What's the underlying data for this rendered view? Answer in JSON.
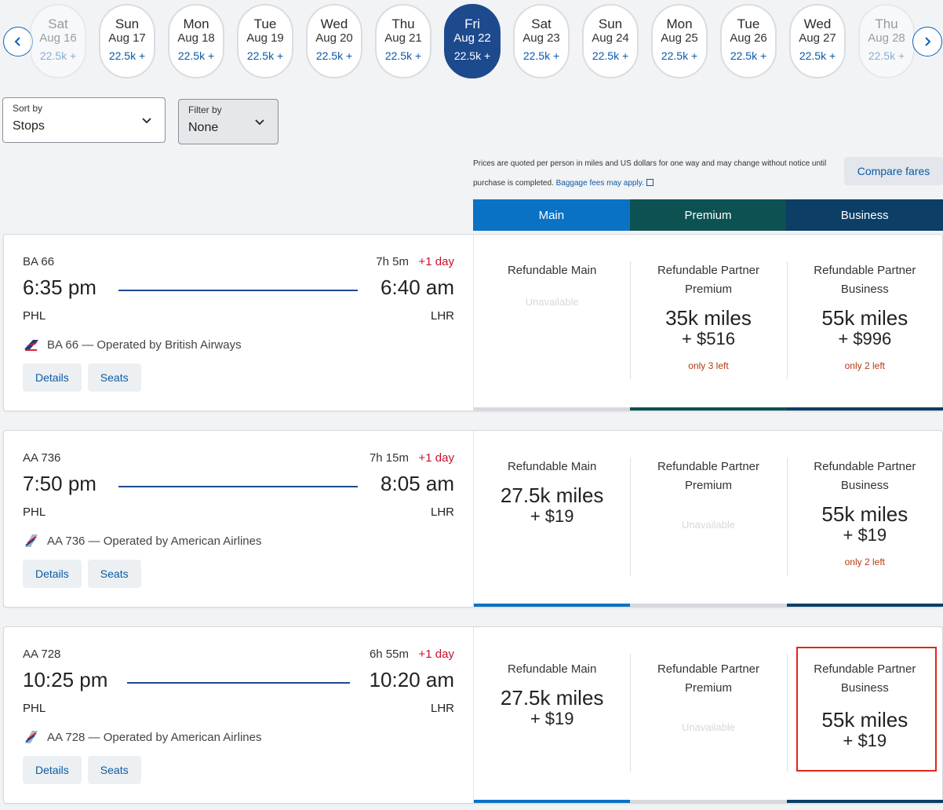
{
  "dates": [
    {
      "dow": "Sat",
      "date": "Aug 16",
      "price": "22.5k +"
    },
    {
      "dow": "Sun",
      "date": "Aug 17",
      "price": "22.5k +"
    },
    {
      "dow": "Mon",
      "date": "Aug 18",
      "price": "22.5k +"
    },
    {
      "dow": "Tue",
      "date": "Aug 19",
      "price": "22.5k +"
    },
    {
      "dow": "Wed",
      "date": "Aug 20",
      "price": "22.5k +"
    },
    {
      "dow": "Thu",
      "date": "Aug 21",
      "price": "22.5k +"
    },
    {
      "dow": "Fri",
      "date": "Aug 22",
      "price": "22.5k +"
    },
    {
      "dow": "Sat",
      "date": "Aug 23",
      "price": "22.5k +"
    },
    {
      "dow": "Sun",
      "date": "Aug 24",
      "price": "22.5k +"
    },
    {
      "dow": "Mon",
      "date": "Aug 25",
      "price": "22.5k +"
    },
    {
      "dow": "Tue",
      "date": "Aug 26",
      "price": "22.5k +"
    },
    {
      "dow": "Wed",
      "date": "Aug 27",
      "price": "22.5k +"
    },
    {
      "dow": "Thu",
      "date": "Aug 28",
      "price": "22.5k +"
    }
  ],
  "sort": {
    "label": "Sort by",
    "value": "Stops"
  },
  "filter": {
    "label": "Filter by",
    "value": "None"
  },
  "notice": {
    "text": "Prices are quoted per person in miles and US dollars for one way and may change without notice until purchase is completed.",
    "link": "Baggage fees may apply."
  },
  "compare_label": "Compare fares",
  "cabins": [
    "Main",
    "Premium",
    "Business"
  ],
  "colors": {
    "main": "#0a72c4",
    "premium": "#0d5252",
    "business": "#0c3e66",
    "selected_date": "#1d4a8d",
    "limited_seats": "#b33a12",
    "plus_day": "#c8102e"
  },
  "flights": [
    {
      "number": "BA 66",
      "duration": "7h 5m",
      "plus_day": "+1 day",
      "depart_time": "6:35 pm",
      "arrive_time": "6:40 am",
      "depart_airport": "PHL",
      "arrive_airport": "LHR",
      "operated": "BA 66 — Operated by British Airways",
      "details_label": "Details",
      "seats_label": "Seats",
      "fares": [
        {
          "name": "Refundable Main",
          "unavailable": "Unavailable"
        },
        {
          "name": "Refundable Partner Premium",
          "miles": "35k miles",
          "cash": "+ $516",
          "seats": "only 3 left"
        },
        {
          "name": "Refundable Partner Business",
          "miles": "55k miles",
          "cash": "+ $996",
          "seats": "only 2 left"
        }
      ]
    },
    {
      "number": "AA 736",
      "duration": "7h 15m",
      "plus_day": "+1 day",
      "depart_time": "7:50 pm",
      "arrive_time": "8:05 am",
      "depart_airport": "PHL",
      "arrive_airport": "LHR",
      "operated": "AA 736 — Operated by American Airlines",
      "details_label": "Details",
      "seats_label": "Seats",
      "fares": [
        {
          "name": "Refundable Main",
          "miles": "27.5k miles",
          "cash": "+ $19"
        },
        {
          "name": "Refundable Partner Premium",
          "unavailable": "Unavailable"
        },
        {
          "name": "Refundable Partner Business",
          "miles": "55k miles",
          "cash": "+ $19",
          "seats": "only 2 left"
        }
      ]
    },
    {
      "number": "AA 728",
      "duration": "6h 55m",
      "plus_day": "+1 day",
      "depart_time": "10:25 pm",
      "arrive_time": "10:20 am",
      "depart_airport": "PHL",
      "arrive_airport": "LHR",
      "operated": "AA 728 — Operated by American Airlines",
      "details_label": "Details",
      "seats_label": "Seats",
      "fares": [
        {
          "name": "Refundable Main",
          "miles": "27.5k miles",
          "cash": "+ $19"
        },
        {
          "name": "Refundable Partner Premium",
          "unavailable": "Unavailable"
        },
        {
          "name": "Refundable Partner Business",
          "miles": "55k miles",
          "cash": "+ $19"
        }
      ]
    }
  ]
}
